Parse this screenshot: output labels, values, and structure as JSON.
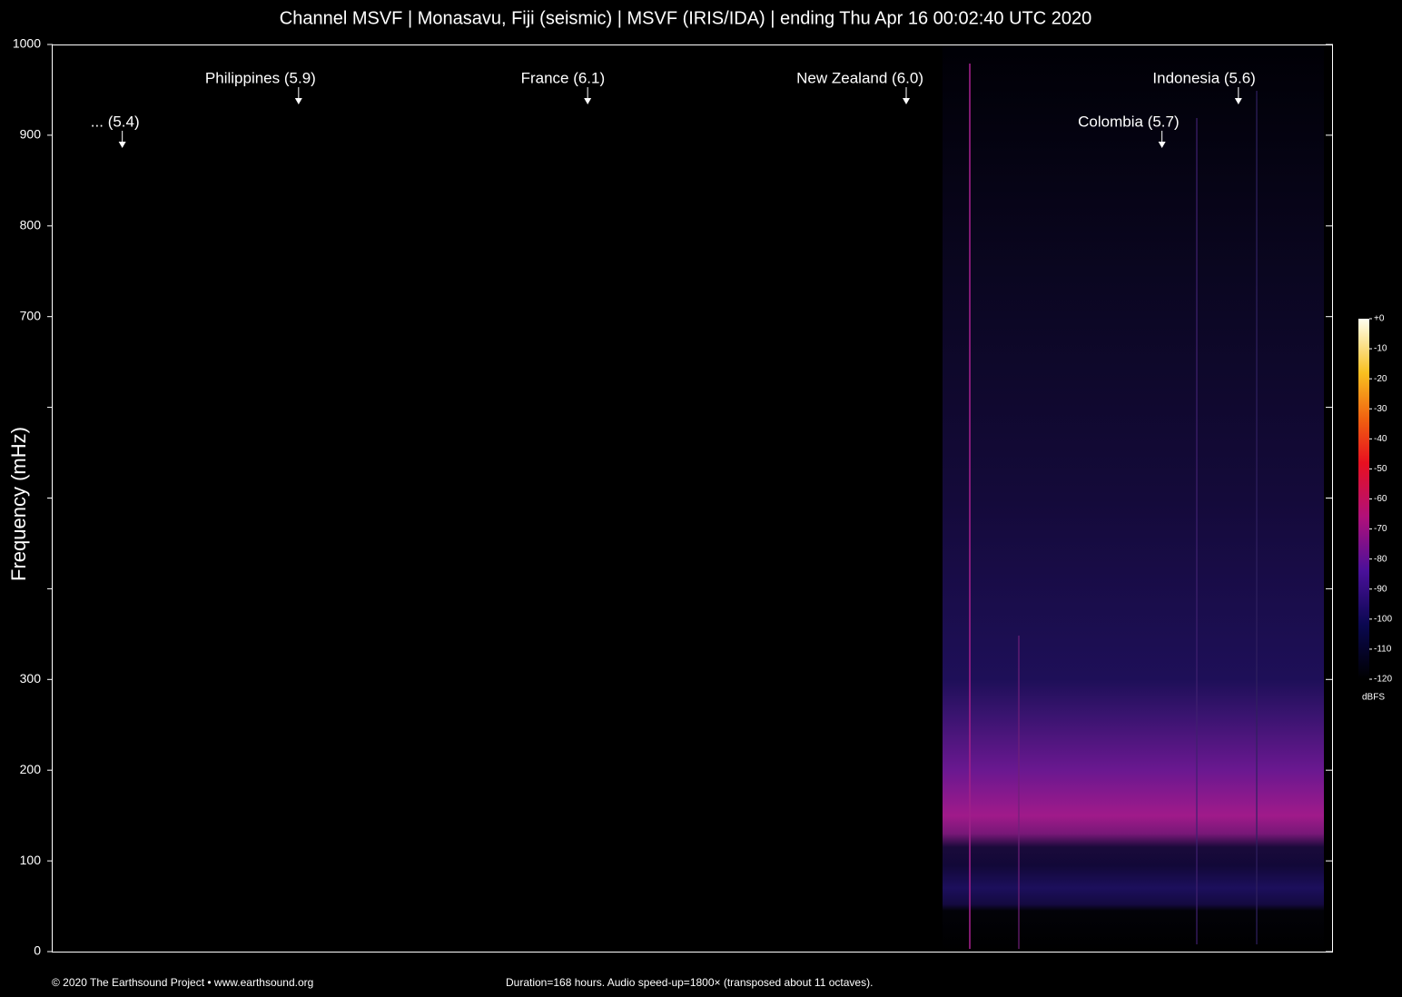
{
  "chart_data": {
    "type": "spectrogram",
    "title": "Channel MSVF | Monasavu, Fiji (seismic) | MSVF (IRIS/IDA) | ending Thu Apr 16 00:02:40 UTC 2020",
    "y_label": "Frequency (mHz)",
    "xlim": [
      0,
      168
    ],
    "ylim": [
      0,
      1000
    ],
    "yticks": [
      0,
      100,
      200,
      300,
      700,
      800,
      900,
      1000
    ],
    "yticks_unlabeled": [
      400,
      500,
      600
    ],
    "annotations": [
      {
        "text": "... (5.4)",
        "x": 9.2
      },
      {
        "text": "Philippines (5.9)",
        "x": 32.5
      },
      {
        "text": "France (6.1)",
        "x": 70.7
      },
      {
        "text": "New Zealand (6.0)",
        "x": 112.8
      },
      {
        "text": "Colombia (5.7)",
        "x": 146.6
      },
      {
        "text": "Indonesia (5.6)",
        "x": 156.7
      }
    ],
    "colorbar": {
      "label": "dBFS",
      "lim": [
        -120,
        0
      ],
      "ticks": [
        {
          "value": 0,
          "label": "+0"
        },
        -10,
        -20,
        -30,
        -40,
        -50,
        -60,
        -70,
        -80,
        -90,
        -100,
        -110,
        -120
      ]
    },
    "footer_left": "© 2020 The Earthsound Project • www.earthsound.org",
    "footer_center": "Duration=168 hours. Audio speed-up=1800× (transposed about 11 octaves)."
  }
}
